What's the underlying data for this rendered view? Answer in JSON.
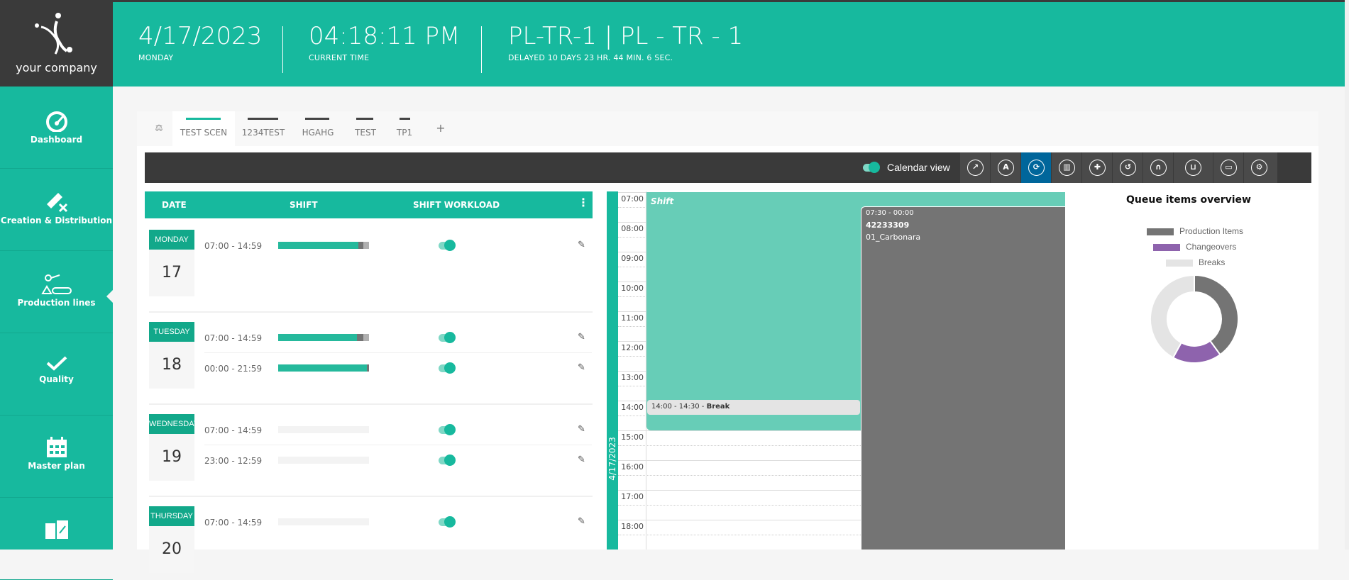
{
  "logo": {
    "text": "your company"
  },
  "header": {
    "date": "4/17/2023",
    "day": "MONDAY",
    "time": "04:18:11 PM",
    "time_label": "CURRENT TIME",
    "line": "PL-TR-1 | PL - TR - 1",
    "delay": "DELAYED 10 DAYS 23 HR. 44 MIN. 6 SEC."
  },
  "sidebar": {
    "items": [
      {
        "label": "Dashboard",
        "icon": "gauge-icon"
      },
      {
        "label": "Creation & Distribution",
        "icon": "ticket-x-icon"
      },
      {
        "label": "Production lines",
        "icon": "conveyor-robot-icon",
        "active": true
      },
      {
        "label": "Quality",
        "icon": "check-icon"
      },
      {
        "label": "Master plan",
        "icon": "calendar-icon"
      },
      {
        "label": "",
        "icon": "warehouse-link-icon"
      }
    ]
  },
  "tabs": [
    {
      "label": "TEST SCEN",
      "active": true
    },
    {
      "label": "1234TEST"
    },
    {
      "label": "HGAHG"
    },
    {
      "label": "TEST"
    },
    {
      "label": "TP1"
    },
    {
      "label": "+"
    }
  ],
  "toolbar": {
    "calendar_view_label": "Calendar view",
    "calendar_view_on": true,
    "buttons": [
      "chart-line-icon",
      "compass-icon",
      "refresh-icon",
      "trash-icon",
      "puzzle-icon",
      "undo-icon",
      "binoculars-icon",
      "cart-icon",
      "archive-icon",
      "gear-icon"
    ],
    "active_button": "refresh-icon",
    "active_color": "#00669b"
  },
  "schedule": {
    "headers": {
      "date": "DATE",
      "shift": "SHIFT",
      "workload": "SHIFT WORKLOAD"
    },
    "days": [
      {
        "name": "MONDAY",
        "num": "17",
        "shifts": [
          {
            "time": "07:00 - 14:59",
            "production": 0.88,
            "changeover": 0.06,
            "breaks": 0.06,
            "enabled": true
          }
        ]
      },
      {
        "name": "TUESDAY",
        "num": "18",
        "shifts": [
          {
            "time": "07:00 - 14:59",
            "production": 0.87,
            "changeover": 0.07,
            "breaks": 0.06,
            "enabled": true
          },
          {
            "time": "00:00 - 21:59",
            "production": 0.98,
            "changeover": 0.02,
            "breaks": 0,
            "enabled": true
          }
        ]
      },
      {
        "name": "WEDNESDAY",
        "num": "19",
        "shifts": [
          {
            "time": "07:00 - 14:59",
            "production": 0,
            "changeover": 0,
            "breaks": 0,
            "enabled": true
          },
          {
            "time": "23:00 - 12:59",
            "production": 0,
            "changeover": 0,
            "breaks": 0,
            "enabled": true
          }
        ]
      },
      {
        "name": "THURSDAY",
        "num": "20",
        "shifts": [
          {
            "time": "07:00 - 14:59",
            "production": 0,
            "changeover": 0,
            "breaks": 0,
            "enabled": true
          }
        ]
      }
    ]
  },
  "calendar": {
    "date": "4/17/2023",
    "hours": [
      "07:00",
      "08:00",
      "09:00",
      "10:00",
      "11:00",
      "12:00",
      "13:00",
      "14:00",
      "15:00",
      "16:00",
      "17:00",
      "18:00"
    ],
    "shift_label": "Shift",
    "break": {
      "time": "14:00 - 14:30 - ",
      "label": "Break"
    },
    "job": {
      "time": "07:30 - 00:00",
      "id": "42233309",
      "name": "01_Carbonara"
    }
  },
  "chart_data": {
    "type": "pie",
    "title": "Queue items overview",
    "legend_position": "top",
    "categories": [
      "Production Items",
      "Changeovers",
      "Breaks"
    ],
    "values": [
      40,
      18,
      42
    ],
    "colors": [
      "#747474",
      "#8e63ad",
      "#e4e4e4"
    ],
    "donut": true
  }
}
